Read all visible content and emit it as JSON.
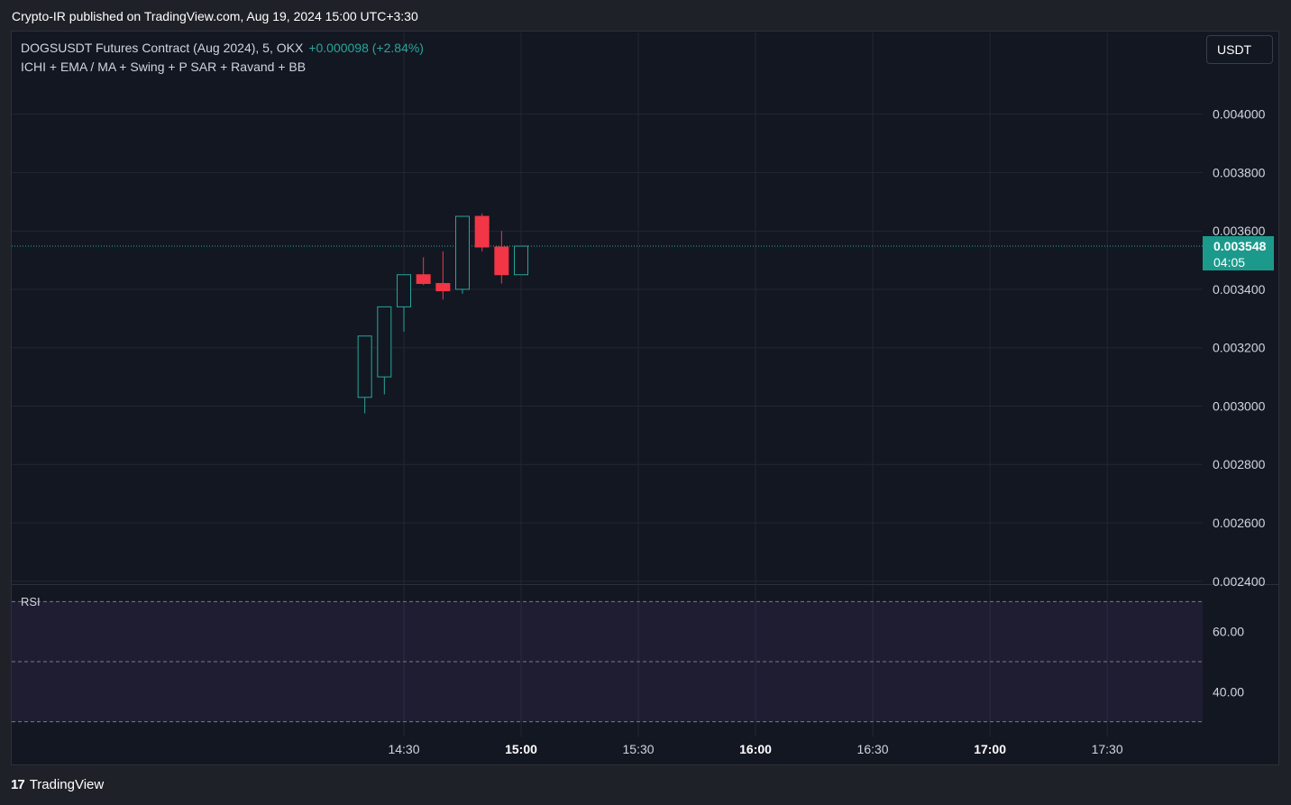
{
  "header": {
    "published": "Crypto-IR published on TradingView.com, Aug 19, 2024 15:00 UTC+3:30"
  },
  "legend": {
    "symbol": "DOGSUSDT Futures Contract (Aug 2024), 5, OKX",
    "change": "+0.000098 (+2.84%)",
    "indicators": "ICHI + EMA / MA + Swing + P SAR + Ravand  + BB"
  },
  "currency_button": {
    "label": "USDT"
  },
  "last_price": {
    "price": "0.003548",
    "countdown": "04:05"
  },
  "rsi": {
    "label": "RSI"
  },
  "footer": {
    "brand": "TradingView",
    "brand_mark": "17"
  },
  "colors": {
    "up": "#26a69a",
    "down": "#f23645",
    "background": "#131722",
    "grid": "#242733",
    "rsi_band": "#7e57c2"
  },
  "chart_data": [
    {
      "type": "candlestick",
      "xlabel": "",
      "ylabel": "",
      "x_ticks": [
        {
          "label": "14:30",
          "bold": false
        },
        {
          "label": "15:00",
          "bold": true
        },
        {
          "label": "15:30",
          "bold": false
        },
        {
          "label": "16:00",
          "bold": true
        },
        {
          "label": "16:30",
          "bold": false
        },
        {
          "label": "17:00",
          "bold": true
        },
        {
          "label": "17:30",
          "bold": false
        }
      ],
      "y_ticks": [
        "0.004000",
        "0.003800",
        "0.003600",
        "0.003400",
        "0.003200",
        "0.003000",
        "0.002800",
        "0.002600",
        "0.002400"
      ],
      "ylim": [
        0.00239,
        0.00428
      ],
      "current_price": 0.003548,
      "candles": [
        {
          "time": "14:20",
          "open": 0.00303,
          "high": 0.00324,
          "low": 0.002975,
          "close": 0.00324
        },
        {
          "time": "14:25",
          "open": 0.0031,
          "high": 0.00334,
          "low": 0.00304,
          "close": 0.00334
        },
        {
          "time": "14:30",
          "open": 0.00334,
          "high": 0.00345,
          "low": 0.003255,
          "close": 0.00345
        },
        {
          "time": "14:35",
          "open": 0.00345,
          "high": 0.00351,
          "low": 0.003415,
          "close": 0.00342
        },
        {
          "time": "14:40",
          "open": 0.00342,
          "high": 0.00353,
          "low": 0.003365,
          "close": 0.003395
        },
        {
          "time": "14:45",
          "open": 0.0034,
          "high": 0.00365,
          "low": 0.003385,
          "close": 0.00365
        },
        {
          "time": "14:50",
          "open": 0.00365,
          "high": 0.00366,
          "low": 0.00353,
          "close": 0.003545
        },
        {
          "time": "14:55",
          "open": 0.003545,
          "high": 0.0036,
          "low": 0.00342,
          "close": 0.00345
        },
        {
          "time": "15:00",
          "open": 0.00345,
          "high": 0.003548,
          "low": 0.00345,
          "close": 0.003548
        }
      ]
    },
    {
      "type": "line",
      "title": "RSI",
      "y_ticks": [
        "60.00",
        "40.00"
      ],
      "ylim": [
        25.1,
        75.8
      ],
      "band": [
        30,
        70
      ],
      "middle": 50,
      "series": []
    }
  ]
}
